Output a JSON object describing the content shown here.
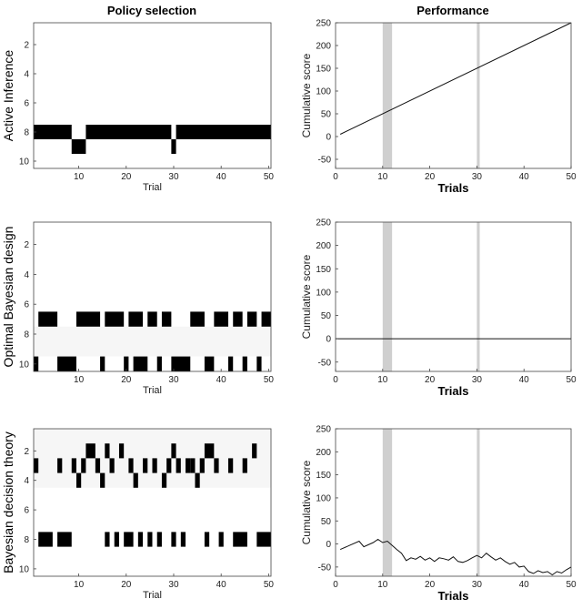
{
  "column_titles": {
    "left": "Policy selection",
    "right": "Performance"
  },
  "chart_data": [
    {
      "type": "heatmap",
      "ylabel": "Active Inference",
      "xlabel": "Trial",
      "xlim": [
        0.5,
        50.5
      ],
      "ylim": [
        0.5,
        10.5
      ],
      "x_ticks": [
        10,
        20,
        30,
        40,
        50
      ],
      "y_ticks": [
        2,
        4,
        6,
        8,
        10
      ],
      "cells": [
        {
          "row": 8,
          "x_from": 1,
          "x_to": 8
        },
        {
          "row": 9,
          "x_from": 9,
          "x_to": 11
        },
        {
          "row": 8,
          "x_from": 12,
          "x_to": 29
        },
        {
          "row": 9,
          "x_from": 30,
          "x_to": 30
        },
        {
          "row": 8,
          "x_from": 31,
          "x_to": 50
        }
      ]
    },
    {
      "type": "line",
      "xlabel": "Trials",
      "ylabel": "Cumulative score",
      "xlim": [
        0,
        50
      ],
      "ylim": [
        -70,
        250
      ],
      "x_ticks": [
        0,
        10,
        20,
        30,
        40,
        50
      ],
      "y_ticks": [
        -50,
        0,
        50,
        100,
        150,
        200,
        250
      ],
      "shaded_x": [
        [
          10,
          12
        ],
        [
          30,
          30.6
        ]
      ],
      "series": [
        {
          "x": [
            1,
            50
          ],
          "y": [
            5,
            250
          ]
        }
      ]
    },
    {
      "type": "heatmap",
      "ylabel": "Optimal Bayesian design",
      "xlabel": "Trial",
      "xlim": [
        0.5,
        50.5
      ],
      "ylim": [
        0.5,
        10.5
      ],
      "x_ticks": [
        10,
        20,
        30,
        40,
        50
      ],
      "y_ticks": [
        2,
        4,
        6,
        8,
        10
      ],
      "background_rows": [
        [
          7.5,
          9.5
        ]
      ],
      "cells": [
        {
          "row": 7,
          "x_from": 2,
          "x_to": 5
        },
        {
          "row": 7,
          "x_from": 10,
          "x_to": 14
        },
        {
          "row": 7,
          "x_from": 16,
          "x_to": 19
        },
        {
          "row": 7,
          "x_from": 21,
          "x_to": 23
        },
        {
          "row": 7,
          "x_from": 25,
          "x_to": 26
        },
        {
          "row": 7,
          "x_from": 28,
          "x_to": 29
        },
        {
          "row": 7,
          "x_from": 34,
          "x_to": 36
        },
        {
          "row": 7,
          "x_from": 39,
          "x_to": 41
        },
        {
          "row": 7,
          "x_from": 43,
          "x_to": 44
        },
        {
          "row": 7,
          "x_from": 46,
          "x_to": 47
        },
        {
          "row": 7,
          "x_from": 49,
          "x_to": 50
        },
        {
          "row": 10,
          "x_from": 1,
          "x_to": 1
        },
        {
          "row": 10,
          "x_from": 6,
          "x_to": 9
        },
        {
          "row": 10,
          "x_from": 15,
          "x_to": 15
        },
        {
          "row": 10,
          "x_from": 20,
          "x_to": 20
        },
        {
          "row": 10,
          "x_from": 22,
          "x_to": 24
        },
        {
          "row": 10,
          "x_from": 27,
          "x_to": 27
        },
        {
          "row": 10,
          "x_from": 30,
          "x_to": 33
        },
        {
          "row": 10,
          "x_from": 37,
          "x_to": 38
        },
        {
          "row": 10,
          "x_from": 42,
          "x_to": 42
        },
        {
          "row": 10,
          "x_from": 45,
          "x_to": 45
        },
        {
          "row": 10,
          "x_from": 48,
          "x_to": 48
        }
      ]
    },
    {
      "type": "line",
      "xlabel": "Trials",
      "ylabel": "Cumulative score",
      "xlim": [
        0,
        50
      ],
      "ylim": [
        -70,
        250
      ],
      "x_ticks": [
        0,
        10,
        20,
        30,
        40,
        50
      ],
      "y_ticks": [
        -50,
        0,
        50,
        100,
        150,
        200,
        250
      ],
      "shaded_x": [
        [
          10,
          12
        ],
        [
          30,
          30.6
        ]
      ],
      "series": [
        {
          "x": [
            0,
            50
          ],
          "y": [
            0,
            0
          ]
        }
      ]
    },
    {
      "type": "heatmap",
      "ylabel": "Bayesian decision theory",
      "xlabel": "Trial",
      "xlim": [
        0.5,
        50.5
      ],
      "ylim": [
        0.5,
        10.5
      ],
      "x_ticks": [
        10,
        20,
        30,
        40,
        50
      ],
      "y_ticks": [
        2,
        4,
        6,
        8,
        10
      ],
      "background_rows": [
        [
          0.5,
          4.5
        ]
      ],
      "cells": [
        {
          "row": 2,
          "x_from": 12,
          "x_to": 13
        },
        {
          "row": 2,
          "x_from": 16,
          "x_to": 16
        },
        {
          "row": 2,
          "x_from": 19,
          "x_to": 19
        },
        {
          "row": 2,
          "x_from": 30,
          "x_to": 30
        },
        {
          "row": 2,
          "x_from": 37,
          "x_to": 38
        },
        {
          "row": 2,
          "x_from": 47,
          "x_to": 47
        },
        {
          "row": 3,
          "x_from": 1,
          "x_to": 1
        },
        {
          "row": 3,
          "x_from": 6,
          "x_to": 6
        },
        {
          "row": 3,
          "x_from": 9,
          "x_to": 9
        },
        {
          "row": 3,
          "x_from": 11,
          "x_to": 11
        },
        {
          "row": 3,
          "x_from": 14,
          "x_to": 14
        },
        {
          "row": 3,
          "x_from": 17,
          "x_to": 17
        },
        {
          "row": 3,
          "x_from": 21,
          "x_to": 21
        },
        {
          "row": 3,
          "x_from": 24,
          "x_to": 24
        },
        {
          "row": 3,
          "x_from": 26,
          "x_to": 26
        },
        {
          "row": 3,
          "x_from": 29,
          "x_to": 29
        },
        {
          "row": 3,
          "x_from": 31,
          "x_to": 31
        },
        {
          "row": 3,
          "x_from": 33,
          "x_to": 33
        },
        {
          "row": 3,
          "x_from": 34,
          "x_to": 34
        },
        {
          "row": 3,
          "x_from": 36,
          "x_to": 36
        },
        {
          "row": 3,
          "x_from": 39,
          "x_to": 39
        },
        {
          "row": 3,
          "x_from": 42,
          "x_to": 42
        },
        {
          "row": 3,
          "x_from": 45,
          "x_to": 45
        },
        {
          "row": 4,
          "x_from": 10,
          "x_to": 10
        },
        {
          "row": 4,
          "x_from": 15,
          "x_to": 15
        },
        {
          "row": 4,
          "x_from": 22,
          "x_to": 22
        },
        {
          "row": 4,
          "x_from": 28,
          "x_to": 28
        },
        {
          "row": 4,
          "x_from": 35,
          "x_to": 35
        },
        {
          "row": 8,
          "x_from": 2,
          "x_to": 4
        },
        {
          "row": 8,
          "x_from": 6,
          "x_to": 8
        },
        {
          "row": 8,
          "x_from": 16,
          "x_to": 16
        },
        {
          "row": 8,
          "x_from": 18,
          "x_to": 18
        },
        {
          "row": 8,
          "x_from": 20,
          "x_to": 21
        },
        {
          "row": 8,
          "x_from": 23,
          "x_to": 23
        },
        {
          "row": 8,
          "x_from": 25,
          "x_to": 25
        },
        {
          "row": 8,
          "x_from": 27,
          "x_to": 27
        },
        {
          "row": 8,
          "x_from": 30,
          "x_to": 30
        },
        {
          "row": 8,
          "x_from": 32,
          "x_to": 32
        },
        {
          "row": 8,
          "x_from": 37,
          "x_to": 37
        },
        {
          "row": 8,
          "x_from": 40,
          "x_to": 40
        },
        {
          "row": 8,
          "x_from": 43,
          "x_to": 45
        },
        {
          "row": 8,
          "x_from": 48,
          "x_to": 50
        }
      ]
    },
    {
      "type": "line",
      "xlabel": "Trials",
      "ylabel": "Cumulative score",
      "xlim": [
        0,
        50
      ],
      "ylim": [
        -70,
        250
      ],
      "x_ticks": [
        0,
        10,
        20,
        30,
        40,
        50
      ],
      "y_ticks": [
        -50,
        0,
        50,
        100,
        150,
        200,
        250
      ],
      "shaded_x": [
        [
          10,
          12
        ],
        [
          30,
          30.6
        ]
      ],
      "series": [
        {
          "x": [
            1,
            3,
            5,
            6,
            8,
            9,
            10,
            11,
            12,
            13,
            14,
            15,
            16,
            17,
            18,
            19,
            20,
            21,
            22,
            23,
            24,
            25,
            26,
            27,
            28,
            29,
            30,
            31,
            32,
            33,
            34,
            35,
            36,
            37,
            38,
            39,
            40,
            41,
            42,
            43,
            44,
            45,
            46,
            47,
            48,
            49,
            50
          ],
          "y": [
            -12,
            -3,
            6,
            -6,
            3,
            10,
            3,
            6,
            -3,
            -12,
            -20,
            -36,
            -30,
            -33,
            -27,
            -35,
            -30,
            -38,
            -30,
            -32,
            -35,
            -28,
            -38,
            -40,
            -36,
            -30,
            -25,
            -30,
            -20,
            -28,
            -35,
            -30,
            -38,
            -44,
            -40,
            -50,
            -48,
            -60,
            -64,
            -58,
            -62,
            -60,
            -67,
            -60,
            -63,
            -56,
            -50
          ]
        }
      ]
    }
  ]
}
